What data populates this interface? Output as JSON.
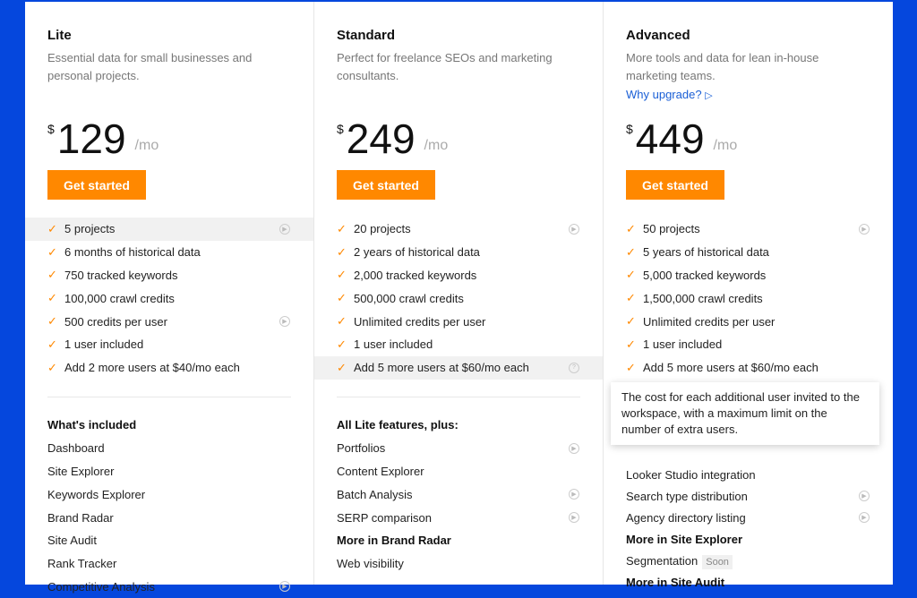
{
  "plans": [
    {
      "name": "Lite",
      "desc": "Essential data for small businesses and personal projects.",
      "currency": "$",
      "price": "129",
      "period": "/mo",
      "cta": "Get started",
      "limits": [
        {
          "t": "5 projects",
          "icon": "play",
          "hl": true
        },
        {
          "t": "6 months of historical data"
        },
        {
          "t": "750 tracked keywords"
        },
        {
          "t": "100,000 crawl credits"
        },
        {
          "t": "500 credits per user",
          "icon": "play"
        },
        {
          "t": "1 user included"
        },
        {
          "t": "Add 2 more users at $40/mo each"
        }
      ],
      "features": [
        {
          "t": "What's included",
          "h": true
        },
        {
          "t": "Dashboard"
        },
        {
          "t": "Site Explorer"
        },
        {
          "t": "Keywords Explorer"
        },
        {
          "t": "Brand Radar"
        },
        {
          "t": "Site Audit"
        },
        {
          "t": "Rank Tracker"
        },
        {
          "t": "Competitive Analysis",
          "icon": "play"
        }
      ]
    },
    {
      "name": "Standard",
      "desc": "Perfect for freelance SEOs and marketing consultants.",
      "currency": "$",
      "price": "249",
      "period": "/mo",
      "cta": "Get started",
      "limits": [
        {
          "t": "20 projects",
          "icon": "play"
        },
        {
          "t": "2 years of historical data"
        },
        {
          "t": "2,000 tracked keywords"
        },
        {
          "t": "500,000 crawl credits"
        },
        {
          "t": "Unlimited credits per user"
        },
        {
          "t": "1 user included"
        },
        {
          "t": "Add 5 more users at $60/mo each",
          "icon": "question",
          "hl": true
        }
      ],
      "features": [
        {
          "t": "All Lite features, plus:",
          "h": true
        },
        {
          "t": "Portfolios",
          "icon": "play"
        },
        {
          "t": "Content Explorer"
        },
        {
          "t": "Batch Analysis",
          "icon": "play"
        },
        {
          "t": "SERP comparison",
          "icon": "play"
        },
        {
          "t": "More in Brand Radar",
          "h": true
        },
        {
          "t": "Web visibility"
        }
      ]
    },
    {
      "name": "Advanced",
      "desc": "More tools and data for lean in-house marketing teams.",
      "why": "Why upgrade?",
      "currency": "$",
      "price": "449",
      "period": "/mo",
      "cta": "Get started",
      "limits": [
        {
          "t": "50 projects",
          "icon": "play"
        },
        {
          "t": "5 years of historical data"
        },
        {
          "t": "5,000 tracked keywords"
        },
        {
          "t": "1,500,000 crawl credits"
        },
        {
          "t": "Unlimited credits per user"
        },
        {
          "t": "1 user included"
        },
        {
          "t": "Add 5 more users at $60/mo each"
        }
      ],
      "features": [
        {
          "t": "",
          "h": true
        },
        {
          "t": ""
        },
        {
          "t": "Looker Studio integration"
        },
        {
          "t": "Search type distribution",
          "icon": "play"
        },
        {
          "t": "Agency directory listing",
          "icon": "play"
        },
        {
          "t": "More in Site Explorer",
          "h": true
        },
        {
          "t": "Segmentation",
          "badge": "Soon"
        },
        {
          "t": "More in Site Audit",
          "h": true
        }
      ]
    }
  ],
  "tooltip": "The cost for each additional user invited to the workspace, with a maximum limit on the number of extra users.",
  "colors": {
    "accent": "#ff8800",
    "background": "#0547dd",
    "link": "#1a5fd6"
  }
}
